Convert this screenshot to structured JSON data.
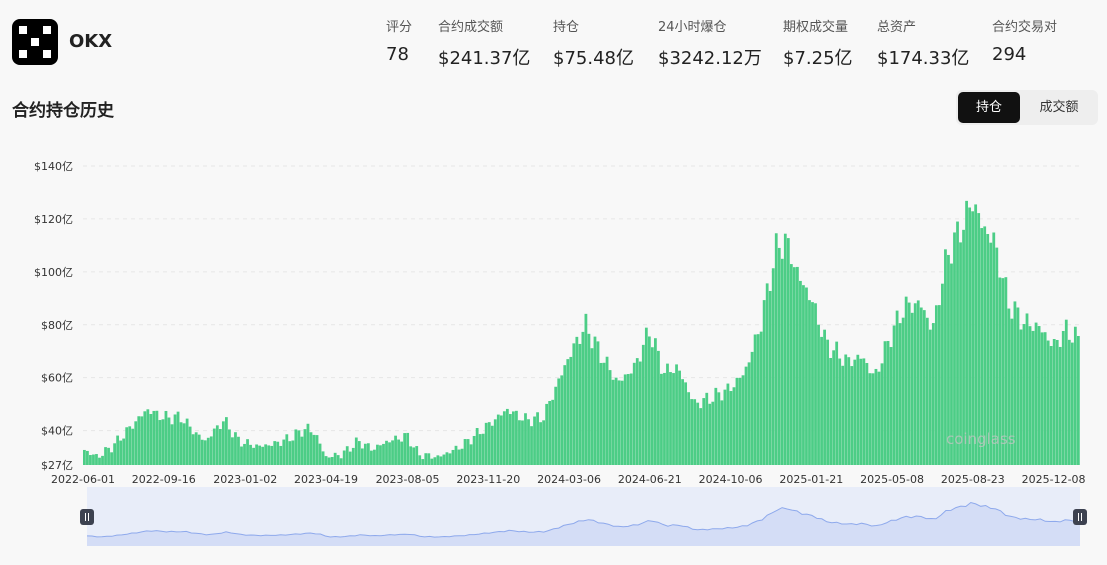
{
  "exchange": {
    "name": "OKX",
    "logo_icon": "okx-logo-icon"
  },
  "stats": [
    {
      "label": "评分",
      "value": "78"
    },
    {
      "label": "合约成交额",
      "value": "$241.37亿"
    },
    {
      "label": "持仓",
      "value": "$75.48亿"
    },
    {
      "label": "24小时爆仓",
      "value": "$3242.12万"
    },
    {
      "label": "期权成交量",
      "value": "$7.25亿"
    },
    {
      "label": "总资产",
      "value": "$174.33亿"
    },
    {
      "label": "合约交易对",
      "value": "294"
    }
  ],
  "section": {
    "title": "合约持仓历史",
    "tabs": [
      "持仓",
      "成交额"
    ],
    "active_tab": "持仓"
  },
  "watermark": "coinglass",
  "colors": {
    "bar": "#4ccd86",
    "navigator_fill": "#d4ddf6",
    "navigator_line": "#8ea9ec"
  },
  "chart_data": {
    "type": "bar",
    "ylabel": "",
    "xlabel": "",
    "unit": "亿",
    "y_ticks": [
      "$27亿",
      "$40亿",
      "$60亿",
      "$80亿",
      "$100亿",
      "$120亿",
      "$140亿"
    ],
    "ylim": [
      27,
      140
    ],
    "x_tick_labels": [
      "2022-06-01",
      "2022-09-16",
      "2023-01-02",
      "2023-04-19",
      "2023-08-05",
      "2023-11-20",
      "2024-03-06",
      "2024-06-21",
      "2024-10-06",
      "2025-01-21",
      "2025-05-08",
      "2025-08-23",
      "2025-12-08"
    ],
    "x_range": [
      "2022-06-01",
      "2026-01-12"
    ],
    "grid": true,
    "series": [
      {
        "points": [
          [
            "2022-06-01",
            33
          ],
          [
            "2022-06-20",
            30
          ],
          [
            "2022-07-10",
            34
          ],
          [
            "2022-07-30",
            40
          ],
          [
            "2022-08-25",
            48
          ],
          [
            "2022-09-16",
            45
          ],
          [
            "2022-10-10",
            45
          ],
          [
            "2022-10-25",
            40
          ],
          [
            "2022-11-10",
            36
          ],
          [
            "2022-12-05",
            44
          ],
          [
            "2022-12-25",
            36
          ],
          [
            "2023-01-20",
            34
          ],
          [
            "2023-02-10",
            35
          ],
          [
            "2023-03-01",
            37
          ],
          [
            "2023-03-25",
            41
          ],
          [
            "2023-04-05",
            39
          ],
          [
            "2023-04-19",
            30
          ],
          [
            "2023-05-10",
            31
          ],
          [
            "2023-06-01",
            36
          ],
          [
            "2023-06-20",
            33
          ],
          [
            "2023-07-10",
            36
          ],
          [
            "2023-08-05",
            38
          ],
          [
            "2023-08-20",
            31
          ],
          [
            "2023-09-15",
            30
          ],
          [
            "2023-10-15",
            34
          ],
          [
            "2023-11-20",
            42
          ],
          [
            "2023-12-15",
            48
          ],
          [
            "2024-01-10",
            44
          ],
          [
            "2024-02-01",
            45
          ],
          [
            "2024-03-06",
            68
          ],
          [
            "2024-03-28",
            80
          ],
          [
            "2024-04-15",
            70
          ],
          [
            "2024-05-10",
            58
          ],
          [
            "2024-06-01",
            64
          ],
          [
            "2024-06-21",
            78
          ],
          [
            "2024-07-10",
            62
          ],
          [
            "2024-07-28",
            64
          ],
          [
            "2024-08-20",
            50
          ],
          [
            "2024-09-15",
            53
          ],
          [
            "2024-10-06",
            56
          ],
          [
            "2024-10-25",
            62
          ],
          [
            "2024-11-15",
            80
          ],
          [
            "2024-12-05",
            108
          ],
          [
            "2024-12-18",
            112
          ],
          [
            "2025-01-05",
            98
          ],
          [
            "2025-01-21",
            90
          ],
          [
            "2025-02-10",
            73
          ],
          [
            "2025-03-10",
            66
          ],
          [
            "2025-03-30",
            68
          ],
          [
            "2025-04-15",
            60
          ],
          [
            "2025-05-08",
            77
          ],
          [
            "2025-05-25",
            87
          ],
          [
            "2025-06-15",
            88
          ],
          [
            "2025-07-01",
            78
          ],
          [
            "2025-07-20",
            106
          ],
          [
            "2025-08-10",
            118
          ],
          [
            "2025-08-23",
            127
          ],
          [
            "2025-09-05",
            117
          ],
          [
            "2025-09-20",
            112
          ],
          [
            "2025-10-10",
            88
          ],
          [
            "2025-10-30",
            81
          ],
          [
            "2025-11-20",
            79
          ],
          [
            "2025-12-08",
            72
          ],
          [
            "2025-12-25",
            78
          ],
          [
            "2026-01-12",
            74
          ]
        ]
      }
    ]
  }
}
